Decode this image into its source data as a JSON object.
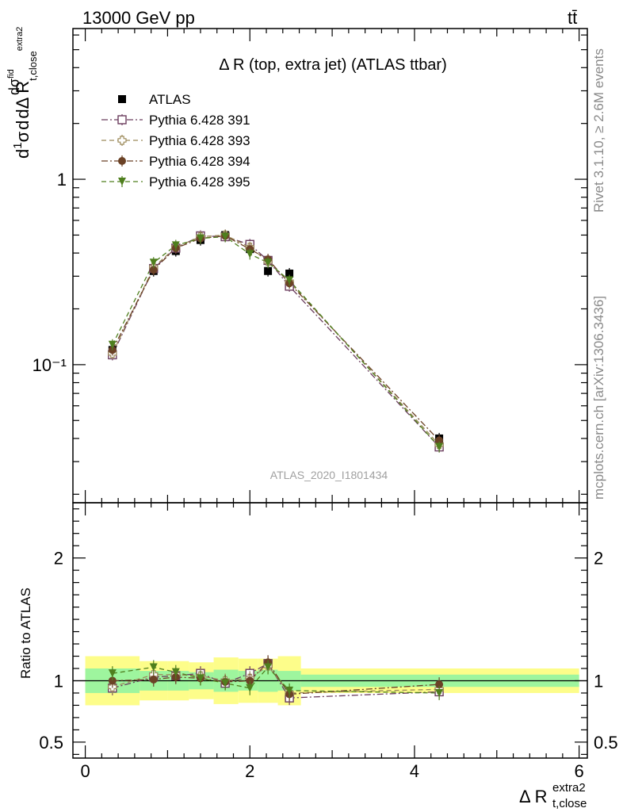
{
  "header": {
    "left": "13000 GeV pp",
    "right": "tt̄"
  },
  "side": {
    "rivet": "Rivet 3.1.10, ≥ 2.6M events",
    "mcplots": "mcplots.cern.ch [arXiv:1306.3436]"
  },
  "watermark": "ATLAS_2020_I1801434",
  "chart_data": {
    "type": "scatter",
    "title": "Δ R (top, extra jet) (ATLAS ttbar)",
    "xlabel": "Δ R t,close extra2",
    "ylabel": "dσ/dΔR t,close extra2 · 1/σ",
    "ratio_ylabel": "Ratio to ATLAS",
    "xlim": [
      -0.15,
      6.1
    ],
    "ylim_main": [
      0.018,
      6.5
    ],
    "ylim_ratio": [
      0.37,
      2.45
    ],
    "log_y_main": true,
    "x_ticks": [
      "0",
      "2",
      "4",
      "6"
    ],
    "y_ticks_main": [
      "1",
      "10⁻¹"
    ],
    "y_ticks_ratio": [
      "0.5",
      "1",
      "2"
    ],
    "legend_position": "top-left",
    "x": [
      0.33,
      0.83,
      1.1,
      1.4,
      1.7,
      2.0,
      2.22,
      2.48,
      4.3
    ],
    "bins": [
      [
        0.0,
        0.66
      ],
      [
        0.66,
        1.0
      ],
      [
        1.0,
        1.26
      ],
      [
        1.26,
        1.56
      ],
      [
        1.56,
        1.86
      ],
      [
        1.86,
        2.1
      ],
      [
        2.1,
        2.34
      ],
      [
        2.34,
        2.62
      ],
      [
        2.62,
        6.0
      ]
    ],
    "band_inner": [
      0.1,
      0.08,
      0.08,
      0.07,
      0.09,
      0.08,
      0.09,
      0.08,
      0.05
    ],
    "band_outer": [
      0.2,
      0.16,
      0.16,
      0.15,
      0.19,
      0.18,
      0.18,
      0.2,
      0.1
    ],
    "series": [
      {
        "name": "ATLAS",
        "color": "#000000",
        "marker": "square-filled",
        "line": "none",
        "values": [
          0.12,
          0.32,
          0.41,
          0.47,
          0.5,
          0.42,
          0.32,
          0.31,
          0.04
        ],
        "ratio": [
          1,
          1,
          1,
          1,
          1,
          1,
          1,
          1,
          1
        ]
      },
      {
        "name": "Pythia 6.428 391",
        "color": "#6b3d5e",
        "marker": "square-open",
        "line": "dashdot",
        "values": [
          0.113,
          0.33,
          0.425,
          0.495,
          0.49,
          0.445,
          0.365,
          0.265,
          0.036
        ],
        "ratio": [
          0.94,
          1.03,
          1.04,
          1.06,
          0.98,
          1.06,
          1.14,
          0.86,
          0.91
        ]
      },
      {
        "name": "Pythia 6.428 393",
        "color": "#9c8a5a",
        "marker": "cross-open",
        "line": "dashed",
        "values": [
          0.115,
          0.335,
          0.43,
          0.49,
          0.5,
          0.43,
          0.36,
          0.28,
          0.037
        ],
        "ratio": [
          0.95,
          1.05,
          1.05,
          1.04,
          1.0,
          1.02,
          1.12,
          0.9,
          0.93
        ]
      },
      {
        "name": "Pythia 6.428 394",
        "color": "#6b4226",
        "marker": "circle-filled",
        "line": "dashdot",
        "values": [
          0.12,
          0.325,
          0.425,
          0.48,
          0.495,
          0.42,
          0.37,
          0.275,
          0.039
        ],
        "ratio": [
          1.0,
          1.01,
          1.03,
          1.02,
          0.99,
          1.0,
          1.15,
          0.89,
          0.97
        ]
      },
      {
        "name": "Pythia 6.428 395",
        "color": "#4f7f1e",
        "marker": "triangle-down-filled",
        "line": "dashed",
        "values": [
          0.128,
          0.355,
          0.44,
          0.48,
          0.49,
          0.395,
          0.355,
          0.285,
          0.036
        ],
        "ratio": [
          1.06,
          1.11,
          1.07,
          1.02,
          0.98,
          0.94,
          1.11,
          0.92,
          0.9
        ]
      }
    ]
  }
}
